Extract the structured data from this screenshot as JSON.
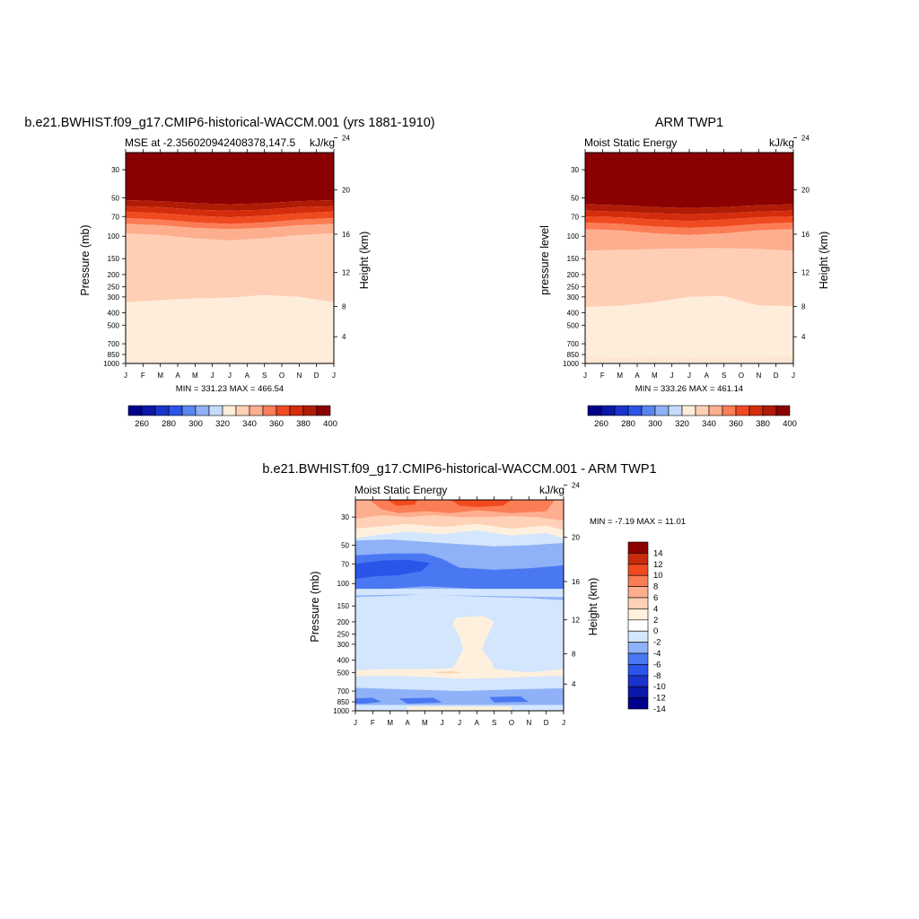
{
  "figure": {
    "panels": [
      {
        "id": "model",
        "title": "b.e21.BWHIST.f09_g17.CMIP6-historical-WACCM.001 (yrs 1881-1910)",
        "left_string": "MSE at -2.356020942408378,147.5",
        "right_string": "kJ/kg",
        "left_axis_title": "Pressure (mb)",
        "right_axis_title": "Height (km)",
        "stats": "MIN = 331.23 MAX = 466.54"
      },
      {
        "id": "obs",
        "title": "ARM TWP1",
        "left_string": "Moist Static Energy",
        "right_string": "kJ/kg",
        "left_axis_title": "pressure level",
        "right_axis_title": "Height (km)",
        "stats": "MIN = 333.26 MAX = 461.14"
      },
      {
        "id": "diff",
        "title": "b.e21.BWHIST.f09_g17.CMIP6-historical-WACCM.001 - ARM TWP1",
        "left_string": "Moist Static Energy",
        "right_string": "kJ/kg",
        "left_axis_title": "Pressure (mb)",
        "right_axis_title": "Height (km)",
        "stats": "MIN =  -7.19 MAX =  11.01"
      }
    ],
    "colors": {
      "mse_levels": [
        "#00008c",
        "#0a17a8",
        "#1a33cc",
        "#2a55e8",
        "#5985f0",
        "#8fb1f7",
        "#c4dbfb",
        "#ffeddb",
        "#ffcfb5",
        "#fdae8f",
        "#fb7d55",
        "#f04a21",
        "#d42c0c",
        "#b01b05",
        "#8b0000"
      ],
      "diff_levels": [
        "#00008c",
        "#0a17a8",
        "#1a33cc",
        "#2a55e8",
        "#4a78f2",
        "#8fb1f7",
        "#d3e6fd",
        "#ffffff",
        "#fff0dd",
        "#ffd1b6",
        "#fdae8f",
        "#fb7d55",
        "#f04a21",
        "#c82c0c",
        "#8b0000"
      ]
    }
  },
  "chart_data": [
    {
      "type": "heatmap",
      "title": "b.e21.BWHIST.f09_g17.CMIP6-historical-WACCM.001 (yrs 1881-1910)",
      "subtitle_left": "MSE at -2.356020942408378,147.5",
      "subtitle_right": "kJ/kg",
      "xlabel": "",
      "ylabel": "Pressure (mb)",
      "ylabel_right": "Height (km)",
      "x_ticks": [
        "J",
        "F",
        "M",
        "A",
        "M",
        "J",
        "J",
        "A",
        "S",
        "O",
        "N",
        "D",
        "J"
      ],
      "y_ticks": [
        30,
        50,
        70,
        100,
        150,
        200,
        250,
        300,
        400,
        500,
        700,
        850,
        1000
      ],
      "y_ticks_right": [
        24,
        20,
        16,
        12,
        8,
        4
      ],
      "y_scale": "log",
      "ylim": [
        1000,
        22
      ],
      "grid": false,
      "contour_levels": [
        260,
        270,
        280,
        290,
        300,
        310,
        320,
        330,
        340,
        350,
        360,
        370,
        380,
        390,
        400
      ],
      "colorbar": {
        "labels": [
          "260",
          "280",
          "300",
          "320",
          "340",
          "360",
          "380",
          "400"
        ],
        "placement": "bottom"
      },
      "min": 331.23,
      "max": 466.54,
      "stats_text": "MIN = 331.23 MAX = 466.54",
      "boundary_pressures_mb": {
        "x_months": [
          0,
          2,
          4,
          6,
          8,
          10,
          12
        ],
        "400": [
          52,
          53,
          55,
          56,
          55,
          53,
          52
        ],
        "390": [
          58,
          59,
          62,
          63,
          62,
          59,
          58
        ],
        "380": [
          64,
          66,
          69,
          71,
          69,
          66,
          64
        ],
        "370": [
          72,
          74,
          78,
          80,
          78,
          74,
          72
        ],
        "360": [
          80,
          82,
          86,
          88,
          86,
          82,
          80
        ],
        "350": [
          95,
          98,
          104,
          108,
          104,
          98,
          95
        ],
        "340": [
          330,
          318,
          308,
          304,
          290,
          300,
          330
        ],
        "330": [
          950,
          960,
          960,
          960,
          960,
          960,
          950
        ]
      }
    },
    {
      "type": "heatmap",
      "title": "ARM TWP1",
      "subtitle_left": "Moist Static Energy",
      "subtitle_right": "kJ/kg",
      "xlabel": "",
      "ylabel": "pressure level",
      "ylabel_right": "Height (km)",
      "x_ticks": [
        "J",
        "F",
        "M",
        "A",
        "M",
        "J",
        "J",
        "A",
        "S",
        "O",
        "N",
        "D",
        "J"
      ],
      "y_ticks": [
        30,
        50,
        70,
        100,
        150,
        200,
        250,
        300,
        400,
        500,
        700,
        850,
        1000
      ],
      "y_ticks_right": [
        24,
        20,
        16,
        12,
        8,
        4
      ],
      "y_scale": "log",
      "ylim": [
        1000,
        22
      ],
      "grid": false,
      "contour_levels": [
        260,
        270,
        280,
        290,
        300,
        310,
        320,
        330,
        340,
        350,
        360,
        370,
        380,
        390,
        400
      ],
      "colorbar": {
        "labels": [
          "260",
          "280",
          "300",
          "320",
          "340",
          "360",
          "380",
          "400"
        ],
        "placement": "bottom"
      },
      "min": 333.26,
      "max": 461.14,
      "stats_text": "MIN = 333.26 MAX = 461.14",
      "boundary_pressures_mb": {
        "x_months": [
          0,
          2,
          4,
          6,
          8,
          10,
          12
        ],
        "400": [
          56,
          57,
          59,
          60,
          59,
          57,
          56
        ],
        "390": [
          63,
          64,
          66,
          67,
          66,
          64,
          63
        ],
        "380": [
          70,
          71,
          74,
          76,
          74,
          71,
          70
        ],
        "370": [
          78,
          80,
          84,
          86,
          84,
          80,
          78
        ],
        "360": [
          88,
          90,
          95,
          98,
          95,
          90,
          88
        ],
        "350": [
          130,
          128,
          126,
          125,
          124,
          126,
          130
        ],
        "340": [
          360,
          352,
          330,
          300,
          295,
          350,
          355
        ],
        "330": [
          870,
          900,
          870,
          890,
          880,
          880,
          870
        ]
      }
    },
    {
      "type": "heatmap",
      "title": "b.e21.BWHIST.f09_g17.CMIP6-historical-WACCM.001 - ARM TWP1",
      "subtitle_left": "Moist Static Energy",
      "subtitle_right": "kJ/kg",
      "xlabel": "",
      "ylabel": "Pressure (mb)",
      "ylabel_right": "Height (km)",
      "x_ticks": [
        "J",
        "F",
        "M",
        "A",
        "M",
        "J",
        "J",
        "A",
        "S",
        "O",
        "N",
        "D",
        "J"
      ],
      "y_ticks": [
        30,
        50,
        70,
        100,
        150,
        200,
        250,
        300,
        400,
        500,
        700,
        850,
        1000
      ],
      "y_ticks_right": [
        24,
        20,
        16,
        12,
        8,
        4
      ],
      "y_scale": "log",
      "ylim": [
        1000,
        22
      ],
      "grid": false,
      "contour_levels": [
        -14,
        -12,
        -10,
        -8,
        -6,
        -4,
        -2,
        0,
        2,
        4,
        6,
        8,
        10,
        12,
        14
      ],
      "colorbar": {
        "labels": [
          "14",
          "12",
          "10",
          "8",
          "6",
          "4",
          "2",
          "0",
          "-2",
          "-4",
          "-6",
          "-8",
          "-10",
          "-12",
          "-14"
        ],
        "placement": "right"
      },
      "min": -7.19,
      "max": 11.01,
      "stats_text": "MIN =  -7.19 MAX =  11.01",
      "features": [
        {
          "level": "6 to 10",
          "region": "near 25-30 mb, Feb-Apr and Jun-Sep"
        },
        {
          "level": "2 to 4",
          "region": "30-40 mb band all year"
        },
        {
          "level": "-4 to -6",
          "region": "70-110 mb, strongest Jan-May"
        },
        {
          "level": "-2 to 0",
          "region": "120-450 mb most of the year"
        },
        {
          "level": "0 to 2",
          "region": "200-450 mb, Jun-Aug; 500 mb band all year"
        },
        {
          "level": "-2 to -4",
          "region": "700-900 mb band"
        }
      ]
    }
  ]
}
